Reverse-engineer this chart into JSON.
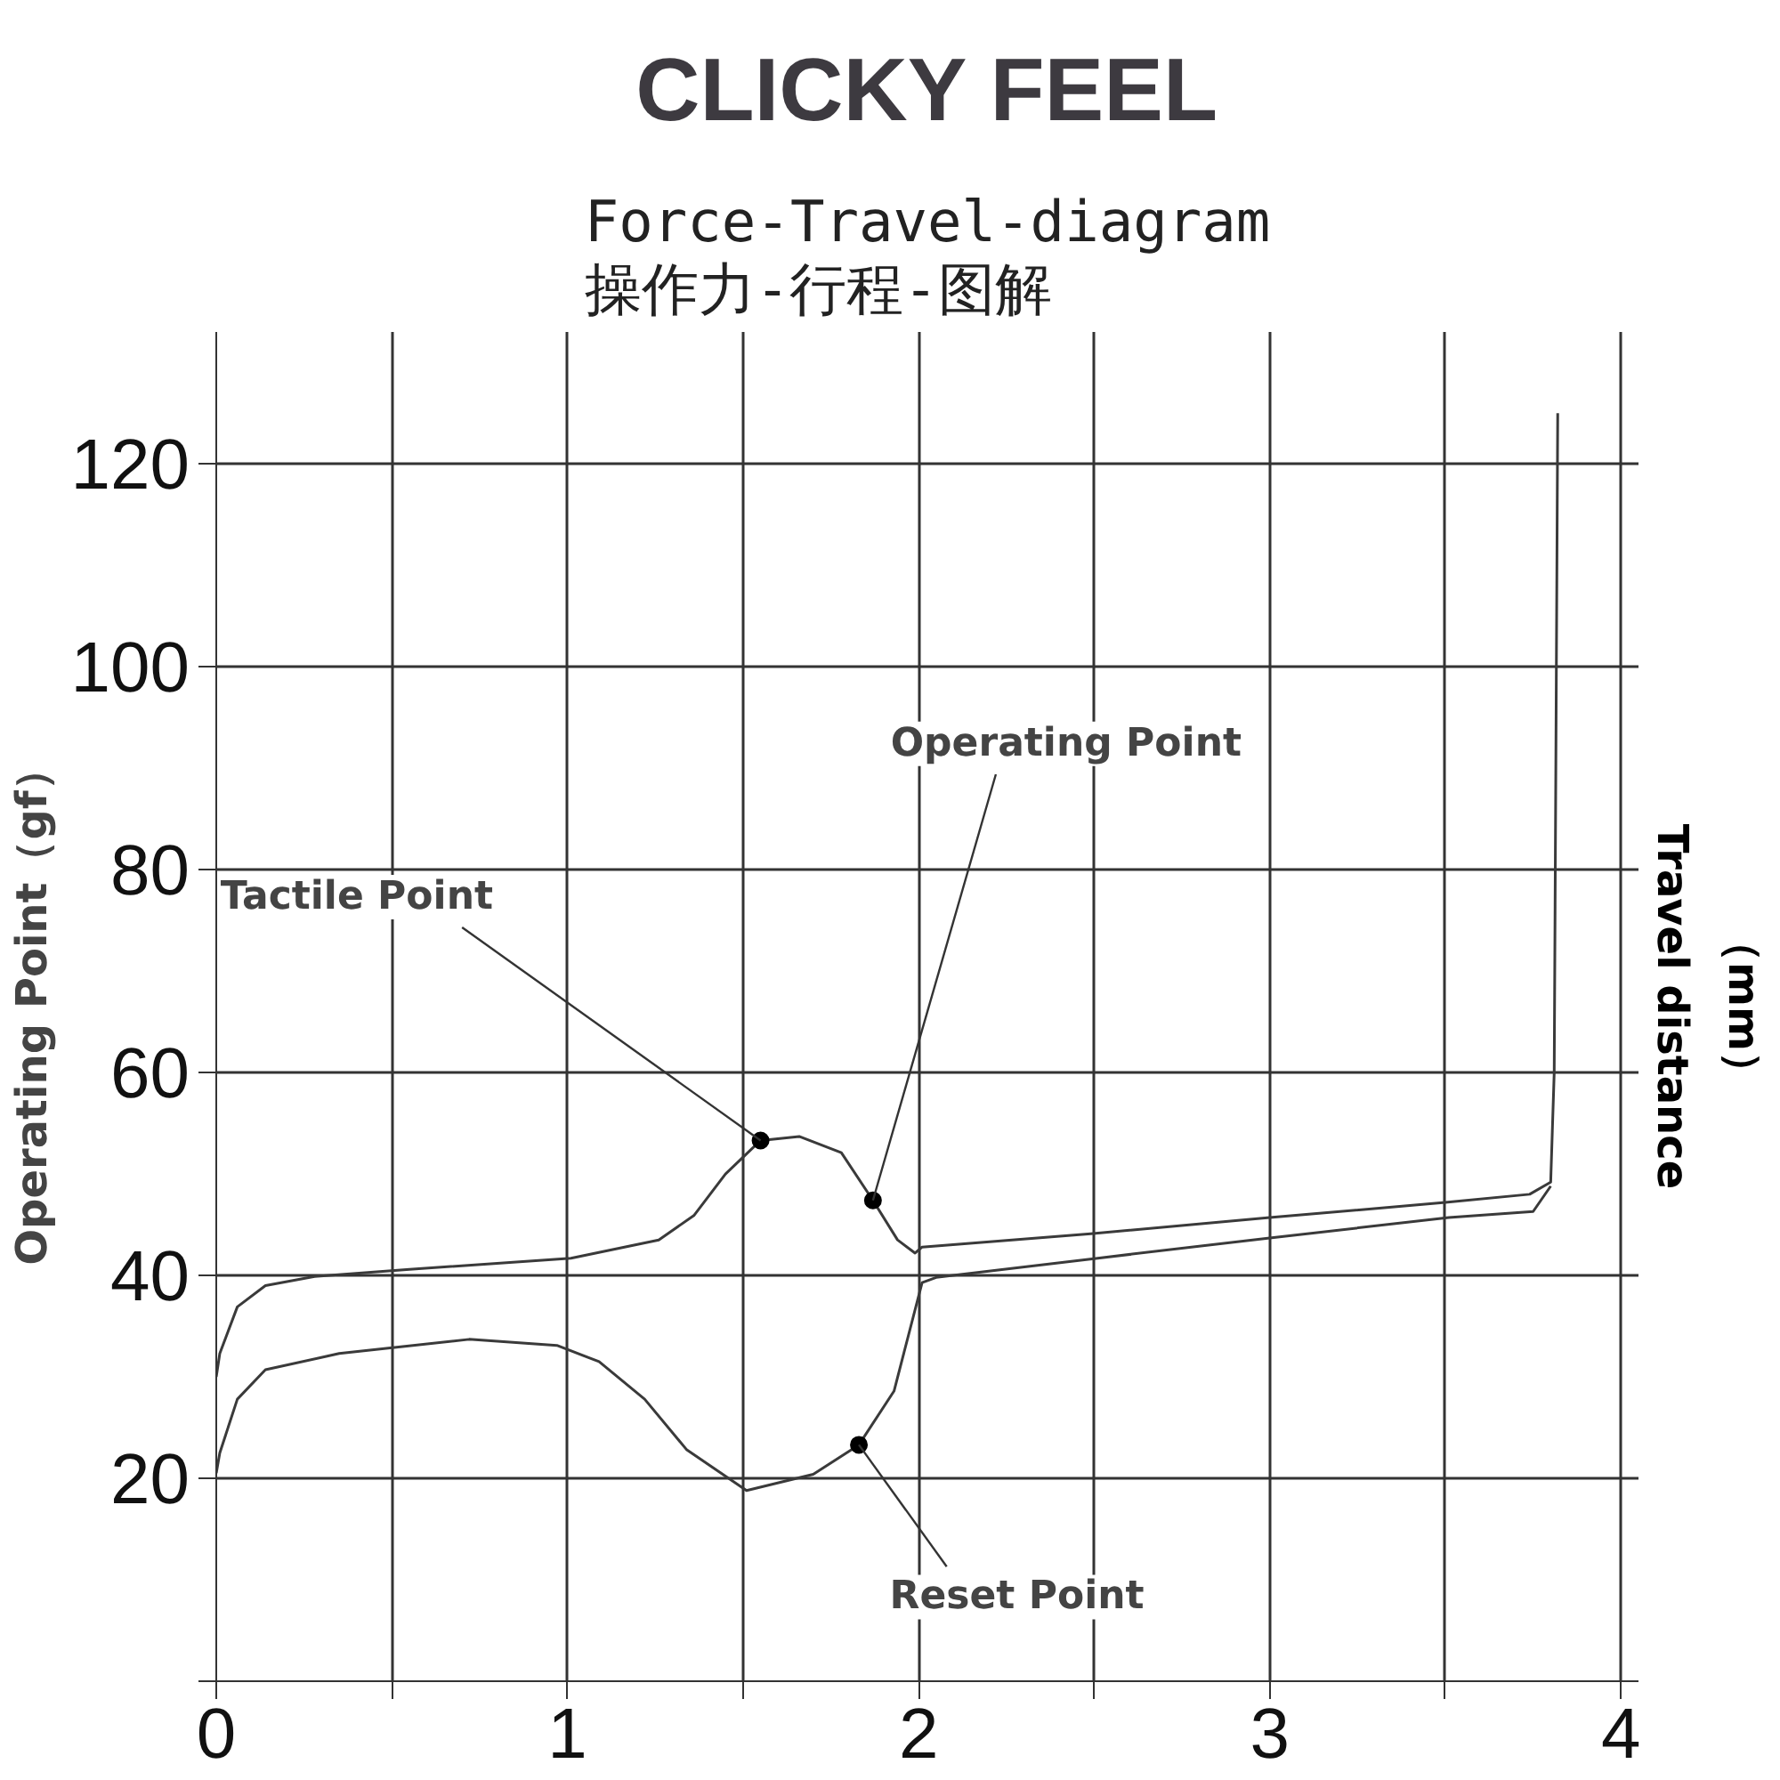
{
  "chart_data": {
    "type": "line",
    "title": "CLICKY FEEL",
    "subtitle": "Force-Travel-diagram\n操作力-行程-图解",
    "ylabel": "Operating Point（gf）",
    "xlim": [
      0,
      4.05
    ],
    "ylim": [
      0,
      133
    ],
    "xticks": [
      0,
      {
        "value": 0.5,
        "label": null
      },
      1,
      {
        "value": 1.5,
        "label": null
      },
      2,
      {
        "value": 2.5,
        "label": null
      },
      3,
      {
        "value": 3.5,
        "label": null
      },
      4
    ],
    "yticks": [
      {
        "value": 0,
        "label": null
      },
      20,
      40,
      60,
      80,
      100,
      120
    ],
    "grid": true,
    "marker": "none",
    "line_style": "solid",
    "series": [
      {
        "color": "#3a3a3a",
        "x": [
          0,
          0.01,
          0.06,
          0.14,
          0.28,
          0.55,
          1.01,
          1.26,
          1.36,
          1.45,
          1.55,
          1.66,
          1.78,
          1.87,
          1.94,
          1.99,
          2.01,
          2.49,
          3.0,
          3.5,
          3.74,
          3.8,
          3.81,
          3.82
        ],
        "values": [
          30,
          32.3,
          36.9,
          39,
          39.9,
          40.6,
          41.7,
          43.5,
          45.9,
          50,
          53.3,
          53.7,
          52.1,
          47.4,
          43.5,
          42.2,
          42.8,
          44.1,
          45.7,
          47.2,
          48,
          49.2,
          60,
          125
        ]
      },
      {
        "color": "#3a3a3a",
        "x": [
          0,
          0.01,
          0.06,
          0.14,
          0.35,
          0.72,
          0.97,
          1.09,
          1.22,
          1.34,
          1.51,
          1.7,
          1.83,
          1.93,
          2.01,
          2.05,
          2.51,
          3.0,
          3.51,
          3.75,
          3.8
        ],
        "values": [
          20.5,
          22.5,
          27.8,
          30.7,
          32.3,
          33.7,
          33.1,
          31.5,
          27.8,
          22.8,
          18.8,
          20.4,
          23.3,
          28.6,
          39.3,
          39.8,
          41.7,
          43.7,
          45.7,
          46.3,
          48.8
        ]
      },
      {
        "type": "scatter",
        "marker": "circle",
        "color": "#000000",
        "x": [
          1.55,
          1.87,
          1.83
        ],
        "values": [
          53.3,
          47.4,
          23.3
        ]
      }
    ],
    "annotations": [
      "Travel distance\n（mm）",
      {
        "text": "Tactile Point",
        "x": 1.55,
        "y": 53.3
      },
      {
        "text": "Operating Point",
        "x": 1.87,
        "y": 47.4
      },
      {
        "text": "Reset Point",
        "x": 1.83,
        "y": 23.3
      }
    ]
  }
}
